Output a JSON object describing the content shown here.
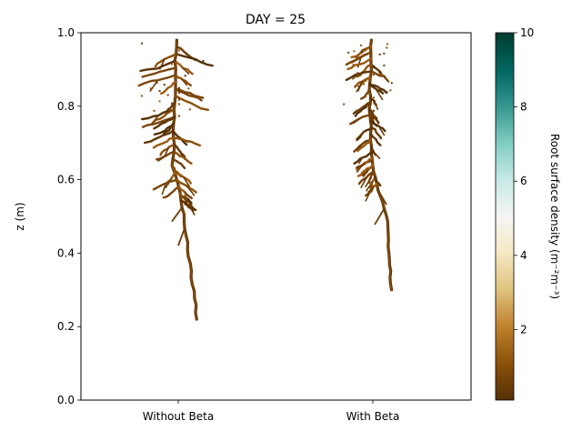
{
  "chart_data": {
    "type": "heatmap",
    "title": "DAY = 25",
    "xlabel": "",
    "ylabel": "z (m)",
    "ylim": [
      0.0,
      1.0
    ],
    "yticks": [
      "0.0",
      "0.2",
      "0.4",
      "0.6",
      "0.8",
      "1.0"
    ],
    "categories": [
      "Without Beta",
      "With Beta"
    ],
    "colorbar": {
      "label": "Root surface density (m⁻²m⁻³)",
      "range": [
        0.1,
        10
      ],
      "ticks": [
        "2",
        "4",
        "6",
        "8",
        "10"
      ],
      "colormap": "BrBG",
      "colors": [
        "#543005",
        "#8c510a",
        "#bf812d",
        "#dfc27d",
        "#f6e8c3",
        "#f5f5f5",
        "#c7eae5",
        "#80cdc1",
        "#35978f",
        "#01665e",
        "#003c30"
      ]
    },
    "grid": false,
    "series": [
      {
        "category": "Without Beta",
        "tip_depth": 0.22,
        "top": 0.98,
        "lateral_extent": [
          -0.12,
          0.11
        ],
        "density_range": [
          0.5,
          2.5
        ]
      },
      {
        "category": "With Beta",
        "tip_depth": 0.3,
        "top": 0.98,
        "lateral_extent": [
          -0.08,
          0.06
        ],
        "density_range": [
          0.5,
          2.5
        ]
      }
    ]
  }
}
